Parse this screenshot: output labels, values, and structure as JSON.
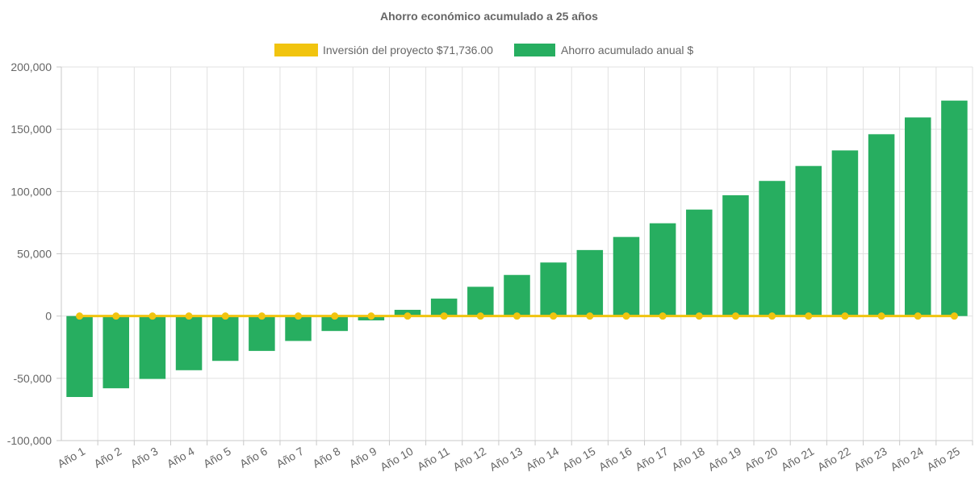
{
  "chart_data": {
    "type": "bar",
    "title": "Ahorro económico acumulado a 25 años",
    "categories": [
      "Año 1",
      "Año 2",
      "Año 3",
      "Año 4",
      "Año 5",
      "Año 6",
      "Año 7",
      "Año 8",
      "Año 9",
      "Año 10",
      "Año 11",
      "Año 12",
      "Año 13",
      "Año 14",
      "Año 15",
      "Año 16",
      "Año 17",
      "Año 18",
      "Año 19",
      "Año 20",
      "Año 21",
      "Año 22",
      "Año 23",
      "Año 24",
      "Año 25"
    ],
    "series": [
      {
        "name": "Inversión del proyecto $71,736.00",
        "type": "line",
        "color": "#f1c40f",
        "values": [
          0,
          0,
          0,
          0,
          0,
          0,
          0,
          0,
          0,
          0,
          0,
          0,
          0,
          0,
          0,
          0,
          0,
          0,
          0,
          0,
          0,
          0,
          0,
          0,
          0
        ]
      },
      {
        "name": "Ahorro acumulado anual $",
        "type": "bar",
        "color": "#27ae60",
        "values": [
          -65000,
          -58000,
          -50500,
          -43500,
          -36000,
          -28000,
          -20000,
          -12000,
          -3500,
          5000,
          14000,
          23500,
          33000,
          43000,
          53000,
          63500,
          74500,
          85500,
          97000,
          108500,
          120500,
          133000,
          146000,
          159500,
          173000
        ]
      }
    ],
    "ylim": [
      -100000,
      200000
    ],
    "yticks": [
      200000,
      150000,
      100000,
      50000,
      0,
      -50000,
      -100000
    ],
    "ytick_labels": [
      "200,000",
      "150,000",
      "100,000",
      "50,000",
      "0",
      "-50,000",
      "-100,000"
    ],
    "xlabel": "",
    "ylabel": "",
    "grid": true,
    "legend_position": "top"
  }
}
